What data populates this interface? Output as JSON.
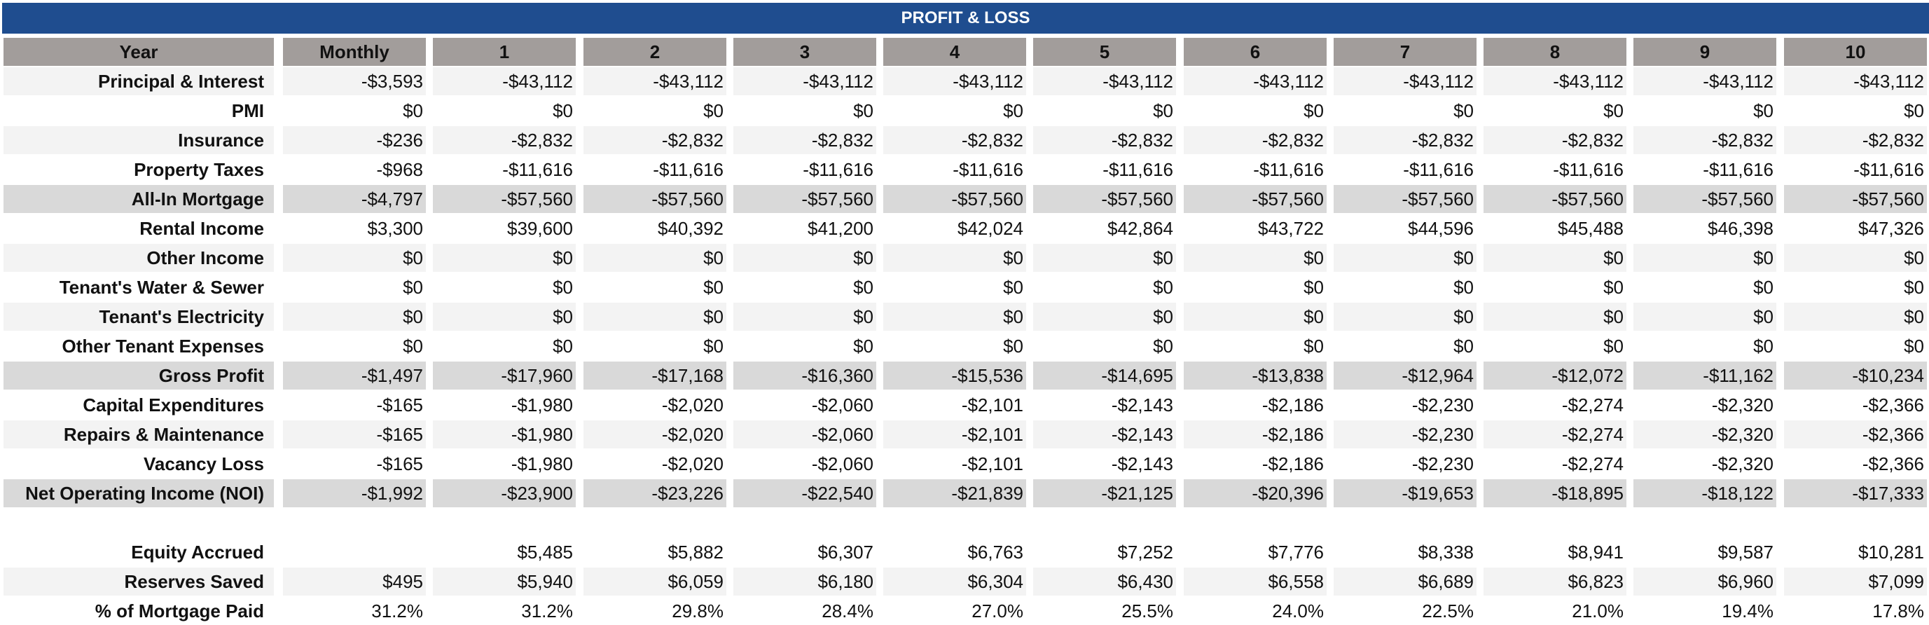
{
  "title": "PROFIT & LOSS",
  "columns": [
    "Year",
    "Monthly",
    "1",
    "2",
    "3",
    "4",
    "5",
    "6",
    "7",
    "8",
    "9",
    "10"
  ],
  "rows": [
    {
      "label": "Principal & Interest",
      "style": "stripe",
      "values": [
        "-$3,593",
        "-$43,112",
        "-$43,112",
        "-$43,112",
        "-$43,112",
        "-$43,112",
        "-$43,112",
        "-$43,112",
        "-$43,112",
        "-$43,112",
        "-$43,112"
      ]
    },
    {
      "label": "PMI",
      "style": "plain",
      "values": [
        "$0",
        "$0",
        "$0",
        "$0",
        "$0",
        "$0",
        "$0",
        "$0",
        "$0",
        "$0",
        "$0"
      ]
    },
    {
      "label": "Insurance",
      "style": "stripe",
      "values": [
        "-$236",
        "-$2,832",
        "-$2,832",
        "-$2,832",
        "-$2,832",
        "-$2,832",
        "-$2,832",
        "-$2,832",
        "-$2,832",
        "-$2,832",
        "-$2,832"
      ]
    },
    {
      "label": "Property Taxes",
      "style": "plain",
      "values": [
        "-$968",
        "-$11,616",
        "-$11,616",
        "-$11,616",
        "-$11,616",
        "-$11,616",
        "-$11,616",
        "-$11,616",
        "-$11,616",
        "-$11,616",
        "-$11,616"
      ]
    },
    {
      "label": "All-In Mortgage",
      "style": "strong",
      "values": [
        "-$4,797",
        "-$57,560",
        "-$57,560",
        "-$57,560",
        "-$57,560",
        "-$57,560",
        "-$57,560",
        "-$57,560",
        "-$57,560",
        "-$57,560",
        "-$57,560"
      ]
    },
    {
      "label": "Rental Income",
      "style": "plain",
      "values": [
        "$3,300",
        "$39,600",
        "$40,392",
        "$41,200",
        "$42,024",
        "$42,864",
        "$43,722",
        "$44,596",
        "$45,488",
        "$46,398",
        "$47,326"
      ]
    },
    {
      "label": "Other Income",
      "style": "stripe",
      "values": [
        "$0",
        "$0",
        "$0",
        "$0",
        "$0",
        "$0",
        "$0",
        "$0",
        "$0",
        "$0",
        "$0"
      ]
    },
    {
      "label": "Tenant's Water & Sewer",
      "style": "plain",
      "values": [
        "$0",
        "$0",
        "$0",
        "$0",
        "$0",
        "$0",
        "$0",
        "$0",
        "$0",
        "$0",
        "$0"
      ]
    },
    {
      "label": "Tenant's Electricity",
      "style": "stripe",
      "values": [
        "$0",
        "$0",
        "$0",
        "$0",
        "$0",
        "$0",
        "$0",
        "$0",
        "$0",
        "$0",
        "$0"
      ]
    },
    {
      "label": "Other Tenant Expenses",
      "style": "plain",
      "values": [
        "$0",
        "$0",
        "$0",
        "$0",
        "$0",
        "$0",
        "$0",
        "$0",
        "$0",
        "$0",
        "$0"
      ]
    },
    {
      "label": "Gross Profit",
      "style": "strong",
      "values": [
        "-$1,497",
        "-$17,960",
        "-$17,168",
        "-$16,360",
        "-$15,536",
        "-$14,695",
        "-$13,838",
        "-$12,964",
        "-$12,072",
        "-$11,162",
        "-$10,234"
      ]
    },
    {
      "label": "Capital Expenditures",
      "style": "plain",
      "values": [
        "-$165",
        "-$1,980",
        "-$2,020",
        "-$2,060",
        "-$2,101",
        "-$2,143",
        "-$2,186",
        "-$2,230",
        "-$2,274",
        "-$2,320",
        "-$2,366"
      ]
    },
    {
      "label": "Repairs & Maintenance",
      "style": "stripe",
      "values": [
        "-$165",
        "-$1,980",
        "-$2,020",
        "-$2,060",
        "-$2,101",
        "-$2,143",
        "-$2,186",
        "-$2,230",
        "-$2,274",
        "-$2,320",
        "-$2,366"
      ]
    },
    {
      "label": "Vacancy Loss",
      "style": "plain",
      "values": [
        "-$165",
        "-$1,980",
        "-$2,020",
        "-$2,060",
        "-$2,101",
        "-$2,143",
        "-$2,186",
        "-$2,230",
        "-$2,274",
        "-$2,320",
        "-$2,366"
      ]
    },
    {
      "label": "Net Operating Income (NOI)",
      "style": "strong",
      "values": [
        "-$1,992",
        "-$23,900",
        "-$23,226",
        "-$22,540",
        "-$21,839",
        "-$21,125",
        "-$20,396",
        "-$19,653",
        "-$18,895",
        "-$18,122",
        "-$17,333"
      ]
    }
  ],
  "summary_rows": [
    {
      "label": "Equity Accrued",
      "style": "bare",
      "values": [
        "",
        "$5,485",
        "$5,882",
        "$6,307",
        "$6,763",
        "$7,252",
        "$7,776",
        "$8,338",
        "$8,941",
        "$9,587",
        "$10,281"
      ]
    },
    {
      "label": "Reserves Saved",
      "style": "stripe",
      "values": [
        "$495",
        "$5,940",
        "$6,059",
        "$6,180",
        "$6,304",
        "$6,430",
        "$6,558",
        "$6,689",
        "$6,823",
        "$6,960",
        "$7,099"
      ]
    },
    {
      "label": "% of Mortgage Paid",
      "style": "bare",
      "values": [
        "31.2%",
        "31.2%",
        "29.8%",
        "28.4%",
        "27.0%",
        "25.5%",
        "24.0%",
        "22.5%",
        "21.0%",
        "19.4%",
        "17.8%"
      ]
    }
  ]
}
